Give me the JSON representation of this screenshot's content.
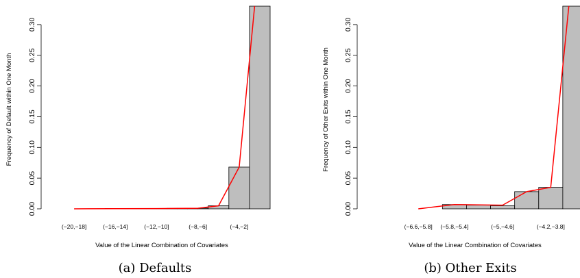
{
  "chart_data": [
    {
      "type": "bar",
      "caption": "(a) Defaults",
      "xlabel": "Value of the Linear Combination of Covariates",
      "ylabel": "Frequency of Default within One Month",
      "ylim": [
        0,
        0.33
      ],
      "yticks": [
        "0.00",
        "0.05",
        "0.10",
        "0.15",
        "0.20",
        "0.25",
        "0.30"
      ],
      "bins": [
        {
          "x0": -20,
          "x1": -19,
          "value": 0.0
        },
        {
          "x0": -19,
          "x1": -18,
          "value": 0.0
        },
        {
          "x0": -18,
          "x1": -17,
          "value": 0.0
        },
        {
          "x0": -17,
          "x1": -16,
          "value": 0.0
        },
        {
          "x0": -16,
          "x1": -15,
          "value": 0.0005
        },
        {
          "x0": -15,
          "x1": -14,
          "value": 0.0005
        },
        {
          "x0": -14,
          "x1": -13,
          "value": 0.0003
        },
        {
          "x0": -13,
          "x1": -12,
          "value": 0.0003
        },
        {
          "x0": -12,
          "x1": -11,
          "value": 0.0005
        },
        {
          "x0": -11,
          "x1": -10,
          "value": 0.0006
        },
        {
          "x0": -10,
          "x1": -9,
          "value": 0.0008
        },
        {
          "x0": -9,
          "x1": -8,
          "value": 0.0008
        },
        {
          "x0": -8,
          "x1": -7,
          "value": 0.001
        },
        {
          "x0": -7,
          "x1": -6,
          "value": 0.0012
        },
        {
          "x0": -6,
          "x1": -4,
          "value": 0.005
        },
        {
          "x0": -4,
          "x1": -2,
          "value": 0.068
        },
        {
          "x0": -2,
          "x1": 0,
          "value": 0.33
        }
      ],
      "category_labels": [
        {
          "label": "(−20,−18]",
          "x0": -20,
          "x1": -18
        },
        {
          "label": "(−16,−14]",
          "x0": -16,
          "x1": -14
        },
        {
          "label": "(−12,−10]",
          "x0": -12,
          "x1": -10
        },
        {
          "label": "(−8,−6]",
          "x0": -8,
          "x1": -6
        },
        {
          "label": "(−4,−2]",
          "x0": -4,
          "x1": -2
        }
      ],
      "fitted_line": [
        {
          "x": -19,
          "y": 0.0
        },
        {
          "x": -15,
          "y": 0.0002
        },
        {
          "x": -11,
          "y": 0.0004
        },
        {
          "x": -7,
          "y": 0.001
        },
        {
          "x": -5,
          "y": 0.005
        },
        {
          "x": -3,
          "y": 0.068
        },
        {
          "x": -1.5,
          "y": 0.33
        }
      ],
      "bar_color": "#bebebe",
      "line_color": "#ff0000"
    },
    {
      "type": "bar",
      "caption": "(b) Other Exits",
      "xlabel": "Value of the Linear Combination of Covariates",
      "ylabel": "Frequency of Other Exits within One Month",
      "ylim": [
        0,
        0.33
      ],
      "yticks": [
        "0.00",
        "0.05",
        "0.10",
        "0.15",
        "0.20",
        "0.25",
        "0.30"
      ],
      "bins": [
        {
          "x0": -6.6,
          "x1": -6.2,
          "value": 0.0
        },
        {
          "x0": -6.2,
          "x1": -5.8,
          "value": 0.0
        },
        {
          "x0": -5.8,
          "x1": -5.4,
          "value": 0.007
        },
        {
          "x0": -5.4,
          "x1": -5.0,
          "value": 0.006
        },
        {
          "x0": -5.0,
          "x1": -4.6,
          "value": 0.005
        },
        {
          "x0": -4.6,
          "x1": -4.2,
          "value": 0.028
        },
        {
          "x0": -4.2,
          "x1": -3.8,
          "value": 0.035
        },
        {
          "x0": -3.8,
          "x1": -3.4,
          "value": 0.33
        }
      ],
      "category_labels": [
        {
          "label": "(−6.6,−5.8]",
          "x0": -6.6,
          "x1": -5.8
        },
        {
          "label": "(−5.8,−5.4]",
          "x0": -5.8,
          "x1": -5.4
        },
        {
          "label": "(−5,−4.6]",
          "x0": -5.0,
          "x1": -4.6
        },
        {
          "label": "(−4.2,−3.8]",
          "x0": -4.2,
          "x1": -3.8
        }
      ],
      "fitted_line": [
        {
          "x": -6.2,
          "y": 0.0
        },
        {
          "x": -5.6,
          "y": 0.007
        },
        {
          "x": -4.8,
          "y": 0.006
        },
        {
          "x": -4.4,
          "y": 0.028
        },
        {
          "x": -4.0,
          "y": 0.035
        },
        {
          "x": -3.7,
          "y": 0.33
        }
      ],
      "bar_color": "#bebebe",
      "line_color": "#ff0000"
    }
  ]
}
